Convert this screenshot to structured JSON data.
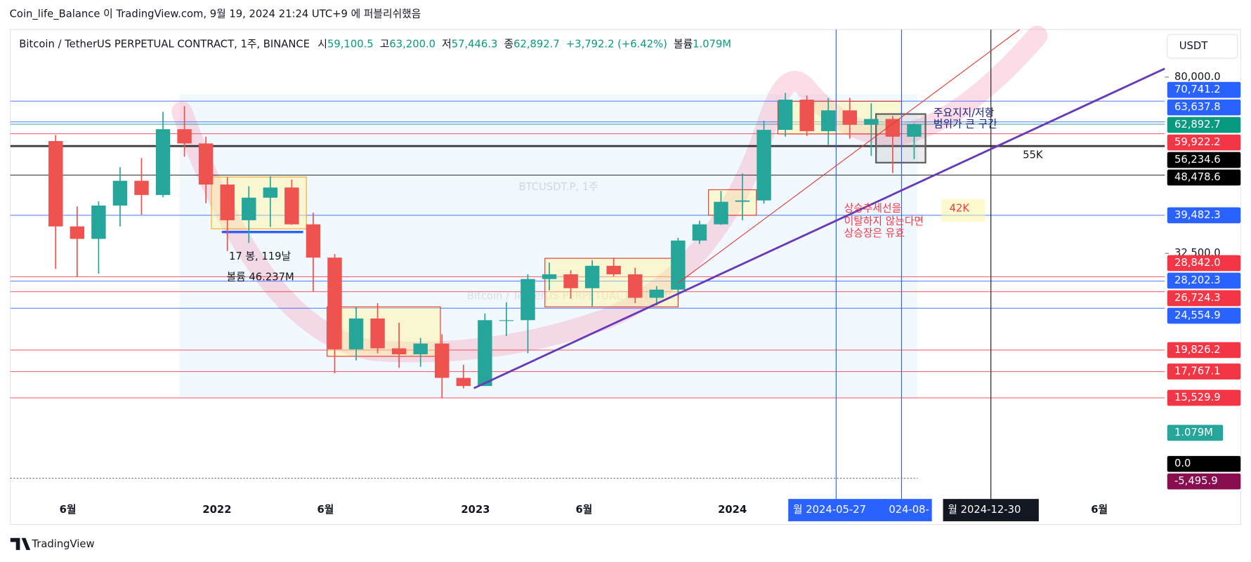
{
  "header": {
    "publisher": "Coin_life_Balance 이 TradingView.com, 9월 19, 2024 21:24 UTC+9 에 퍼블리쉬했음",
    "currency": "USDT",
    "brand": "TradingView"
  },
  "legend": {
    "symbol": "Bitcoin / TetherUS PERPETUAL CONTRACT, 1주, BINANCE",
    "items": [
      {
        "label": "시",
        "value": "59,100.5"
      },
      {
        "label": "고",
        "value": "63,200.0"
      },
      {
        "label": "저",
        "value": "57,446.3"
      },
      {
        "label": "종",
        "value": "62,892.7"
      },
      {
        "label": "",
        "value": "+3,792.2 (+6.42%)"
      },
      {
        "label": "볼륨",
        "value": "1.079M"
      }
    ]
  },
  "chart_data": {
    "type": "candlestick",
    "watermark": "BTCUSDT.P, 1주",
    "watermark_sub": "Bitcoin / TetherUS PERPETUAL CONTRACT",
    "log_scale": true,
    "up_color": "#26a69a",
    "down_color": "#ef5350",
    "x": [
      "2021-05",
      "2021-06",
      "2021-07",
      "2021-08",
      "2021-09",
      "2021-10",
      "2021-11",
      "2021-12",
      "2022-01",
      "2022-02",
      "2022-03",
      "2022-04",
      "2022-05",
      "2022-06",
      "2022-07",
      "2022-08",
      "2022-09",
      "2022-10",
      "2022-11",
      "2022-12",
      "2023-01",
      "2023-02",
      "2023-03",
      "2023-04",
      "2023-05",
      "2023-06",
      "2023-07",
      "2023-08",
      "2023-09",
      "2023-10",
      "2023-11",
      "2023-12",
      "2024-01",
      "2024-02",
      "2024-03",
      "2024-04",
      "2024-05",
      "2024-06",
      "2024-07",
      "2024-08",
      "2024-09"
    ],
    "open": [
      57700,
      37300,
      35000,
      41500,
      47100,
      43800,
      61300,
      57000,
      46200,
      38500,
      43200,
      45500,
      37700,
      31800,
      19900,
      23300,
      20000,
      19400,
      20500,
      17200,
      16500,
      23100,
      23100,
      28500,
      29200,
      27200,
      30500,
      29200,
      25900,
      27000,
      34700,
      37700,
      42300,
      42600,
      61100,
      71300,
      60700,
      67500,
      62700,
      64600,
      59000
    ],
    "high": [
      59500,
      41300,
      42400,
      50500,
      52900,
      67000,
      69000,
      59000,
      48000,
      45800,
      48200,
      47400,
      40000,
      32400,
      24700,
      25200,
      22800,
      21100,
      21500,
      18400,
      23900,
      25300,
      29200,
      31000,
      29800,
      31400,
      31800,
      30200,
      27500,
      35200,
      38400,
      44700,
      48900,
      64000,
      73800,
      72800,
      71900,
      72000,
      70000,
      65600,
      63200
    ],
    "low": [
      30000,
      28800,
      29300,
      37300,
      39600,
      43300,
      53300,
      42000,
      32900,
      34300,
      37200,
      37600,
      26700,
      17600,
      18800,
      19500,
      18100,
      18200,
      15500,
      16300,
      16500,
      21300,
      19500,
      26900,
      25800,
      24800,
      28900,
      25200,
      24900,
      26500,
      34100,
      37600,
      38500,
      41900,
      59000,
      59200,
      56600,
      58400,
      53500,
      49000,
      52600
    ],
    "close": [
      37300,
      35000,
      41500,
      47100,
      43800,
      61300,
      57000,
      46200,
      38500,
      43200,
      45500,
      37700,
      31800,
      19900,
      23300,
      20000,
      19400,
      20500,
      17200,
      16500,
      23100,
      23100,
      28500,
      29200,
      27200,
      30500,
      29200,
      25900,
      27000,
      34700,
      37700,
      42300,
      42600,
      61100,
      71300,
      60700,
      67500,
      62700,
      64600,
      59000,
      62892.7
    ],
    "ylim": [
      9300,
      101600
    ],
    "yticks": [
      {
        "value": 80000,
        "label": "80,000.0"
      },
      {
        "value": 32500,
        "label": "32,500.0"
      }
    ],
    "price_levels": [
      {
        "value": 70741.2,
        "label": "70,741.2",
        "color": "#2962ff"
      },
      {
        "value": 63637.8,
        "label": "63,637.8",
        "color": "#2962ff"
      },
      {
        "value": 62892.7,
        "label": "62,892.7",
        "color": "#089981"
      },
      {
        "value": 59922.2,
        "label": "59,922.2",
        "color": "#f23645"
      },
      {
        "value": 56234.6,
        "label": "56,234.6",
        "color": "#000000"
      },
      {
        "value": 48478.6,
        "label": "48,478.6",
        "color": "#000000"
      },
      {
        "value": 39482.3,
        "label": "39,482.3",
        "color": "#2962ff"
      },
      {
        "value": 28842.0,
        "label": "28,842.0",
        "color": "#f23645"
      },
      {
        "value": 28202.3,
        "label": "28,202.3",
        "color": "#2962ff"
      },
      {
        "value": 26724.3,
        "label": "26,724.3",
        "color": "#f23645"
      },
      {
        "value": 24554.9,
        "label": "24,554.9",
        "color": "#2962ff"
      },
      {
        "value": 19826.2,
        "label": "19,826.2",
        "color": "#f23645"
      },
      {
        "value": 17767.1,
        "label": "17,767.1",
        "color": "#f23645"
      },
      {
        "value": 15529.9,
        "label": "15,529.9",
        "color": "#f23645"
      }
    ],
    "volume_label": "1.079M",
    "oscillator_labels": [
      "0.0",
      "-5,495.9"
    ],
    "time_labels": [
      "6월",
      "2022",
      "6월",
      "2023",
      "6월",
      "2024",
      "6월"
    ],
    "time_markers": [
      "월 2024-05-27",
      "024-08-",
      "월 2024-12-30"
    ],
    "annotations": [
      "주요지지/저항",
      "범위가 큰 구간",
      "55K",
      "42K",
      "상승추세선을",
      "이탈하지 않는다면",
      "상승장은 유효",
      "17 봉, 119날",
      "볼륨 46.237M"
    ]
  }
}
